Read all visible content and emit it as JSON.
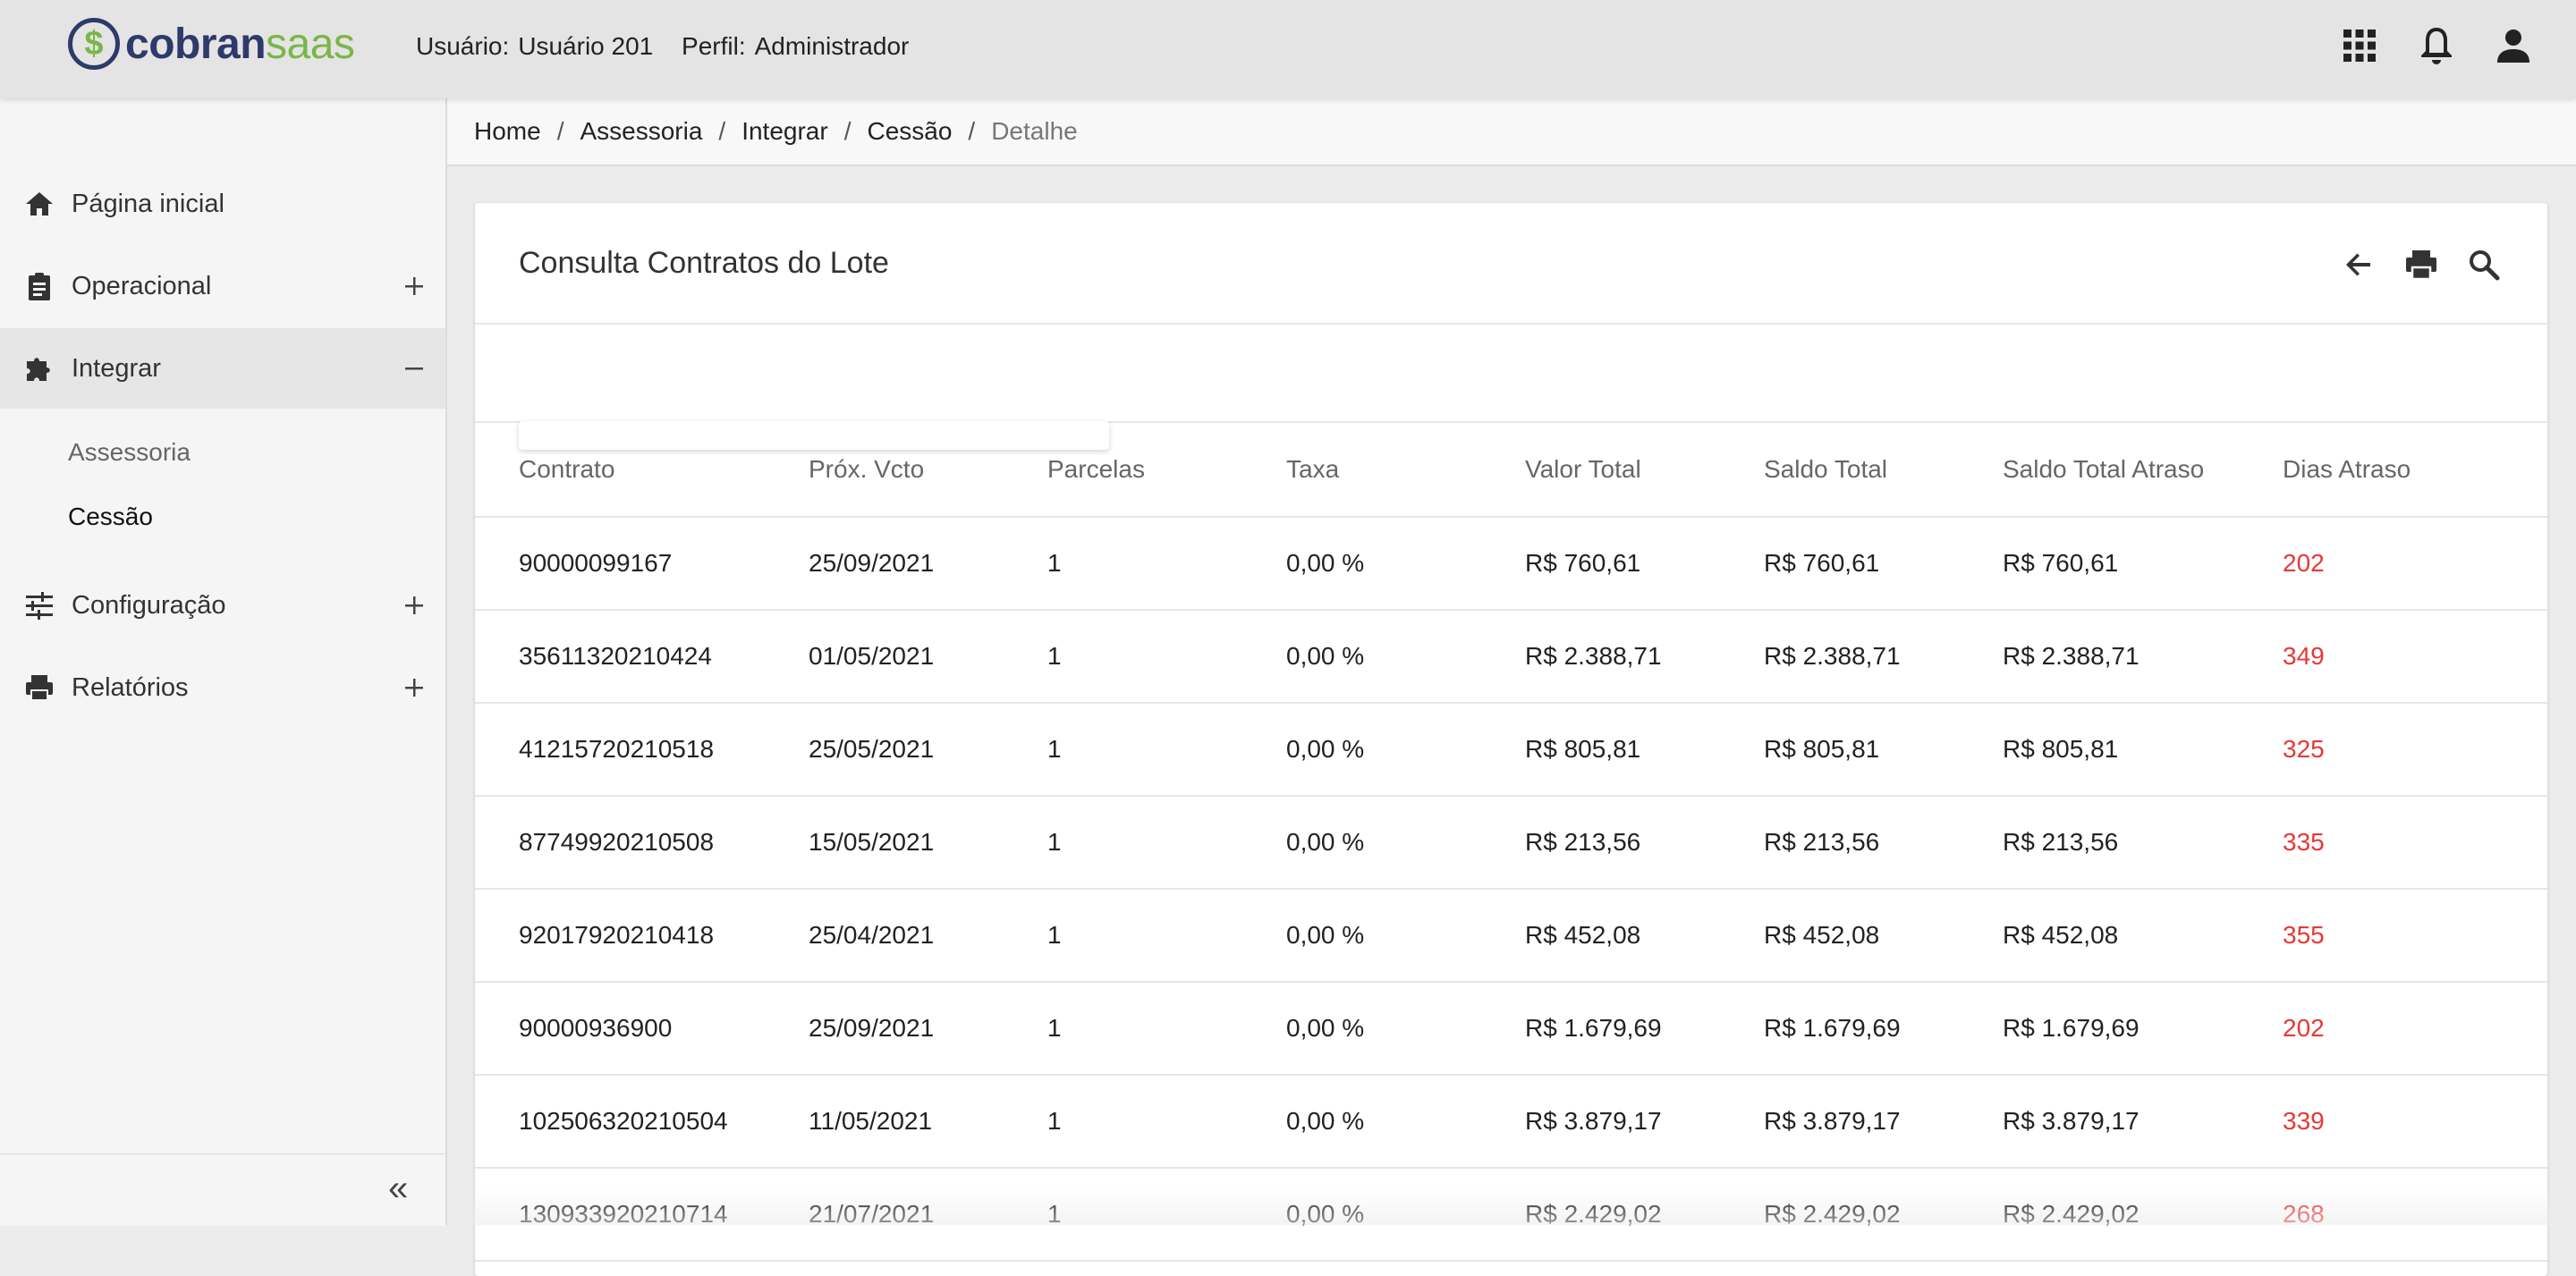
{
  "app": {
    "logo_part1": "cobran",
    "logo_part2": "saas",
    "logo_mark": "$"
  },
  "header": {
    "user_label": "Usuário:",
    "user_value": "Usuário 201",
    "profile_label": "Perfil:",
    "profile_value": "Administrador",
    "icons": [
      "apps-grid-icon",
      "bell-icon",
      "account-icon"
    ]
  },
  "sidebar": {
    "items": [
      {
        "label": "Página inicial",
        "icon": "home-icon"
      },
      {
        "label": "Operacional",
        "icon": "clipboard-icon",
        "toggle": "+"
      },
      {
        "label": "Integrar",
        "icon": "puzzle-icon",
        "toggle": "−"
      },
      {
        "label": "Configuração",
        "icon": "tune-icon",
        "toggle": "+"
      },
      {
        "label": "Relatórios",
        "icon": "printer-icon",
        "toggle": "+"
      }
    ],
    "subitems": [
      "Assessoria",
      "Cessão"
    ],
    "collapse_glyph": "«"
  },
  "breadcrumb": [
    "Home",
    "Assessoria",
    "Integrar",
    "Cessão",
    "Detalhe"
  ],
  "card": {
    "title": "Consulta Contratos do Lote",
    "actions": [
      "back-arrow-icon",
      "print-icon",
      "search-icon"
    ]
  },
  "table": {
    "columns": [
      "Contrato",
      "Próx. Vcto",
      "Parcelas",
      "Taxa",
      "Valor Total",
      "Saldo Total",
      "Saldo Total Atraso",
      "Dias Atraso"
    ],
    "rows": [
      [
        "90000099167",
        "25/09/2021",
        "1",
        "0,00 %",
        "R$ 760,61",
        "R$ 760,61",
        "R$ 760,61",
        "202"
      ],
      [
        "35611320210424",
        "01/05/2021",
        "1",
        "0,00 %",
        "R$ 2.388,71",
        "R$ 2.388,71",
        "R$ 2.388,71",
        "349"
      ],
      [
        "41215720210518",
        "25/05/2021",
        "1",
        "0,00 %",
        "R$ 805,81",
        "R$ 805,81",
        "R$ 805,81",
        "325"
      ],
      [
        "87749920210508",
        "15/05/2021",
        "1",
        "0,00 %",
        "R$ 213,56",
        "R$ 213,56",
        "R$ 213,56",
        "335"
      ],
      [
        "92017920210418",
        "25/04/2021",
        "1",
        "0,00 %",
        "R$ 452,08",
        "R$ 452,08",
        "R$ 452,08",
        "355"
      ],
      [
        "90000936900",
        "25/09/2021",
        "1",
        "0,00 %",
        "R$ 1.679,69",
        "R$ 1.679,69",
        "R$ 1.679,69",
        "202"
      ],
      [
        "102506320210504",
        "11/05/2021",
        "1",
        "0,00 %",
        "R$ 3.879,17",
        "R$ 3.879,17",
        "R$ 3.879,17",
        "339"
      ],
      [
        "130933920210714",
        "21/07/2021",
        "1",
        "0,00 %",
        "R$ 2.429,02",
        "R$ 2.429,02",
        "R$ 2.429,02",
        "268"
      ]
    ]
  },
  "colors": {
    "brand_dark": "#2e3a6a",
    "brand_green": "#7ab648",
    "late_red": "#e53935"
  }
}
